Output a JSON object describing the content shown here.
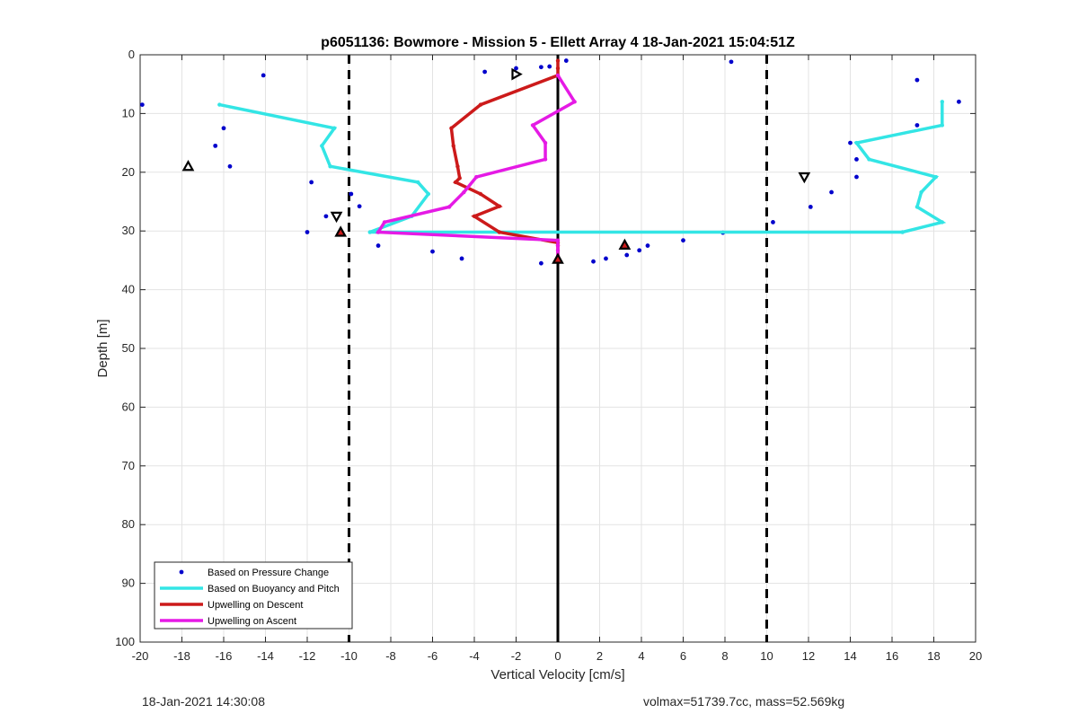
{
  "chart_data": {
    "type": "scatter",
    "title": "p6051136: Bowmore - Mission 5 - Ellett Array 4 18-Jan-2021 15:04:51Z",
    "xlabel": "Vertical Velocity [cm/s]",
    "ylabel": "Depth [m]",
    "xlim": [
      -20,
      20
    ],
    "ylim": [
      0,
      100
    ],
    "y_reversed": true,
    "xticks": [
      -20,
      -18,
      -16,
      -14,
      -12,
      -10,
      -8,
      -6,
      -4,
      -2,
      0,
      2,
      4,
      6,
      8,
      10,
      12,
      14,
      16,
      18,
      20
    ],
    "yticks": [
      0,
      10,
      20,
      30,
      40,
      50,
      60,
      70,
      80,
      90,
      100
    ],
    "grid": true,
    "legend_position": "bottom-left",
    "reference_lines": [
      {
        "x": -10,
        "style": "dashed",
        "color": "#000000"
      },
      {
        "x": 10,
        "style": "dashed",
        "color": "#000000"
      },
      {
        "x": 0,
        "style": "solid",
        "color": "#000000"
      }
    ],
    "series": [
      {
        "name": "Based on Pressure Change",
        "kind": "points",
        "color": "#0000cc",
        "points": [
          [
            -19.9,
            8.5
          ],
          [
            -14.1,
            3.5
          ],
          [
            -16.0,
            12.5
          ],
          [
            -16.4,
            15.5
          ],
          [
            -15.7,
            19.0
          ],
          [
            -11.8,
            21.7
          ],
          [
            -11.1,
            27.5
          ],
          [
            -12.0,
            30.2
          ],
          [
            -9.9,
            23.7
          ],
          [
            -9.5,
            25.8
          ],
          [
            -8.6,
            32.5
          ],
          [
            -6.0,
            33.5
          ],
          [
            -4.6,
            34.7
          ],
          [
            -3.5,
            2.9
          ],
          [
            -2.0,
            2.3
          ],
          [
            -0.8,
            2.1
          ],
          [
            -0.4,
            2.0
          ],
          [
            0.4,
            1.0
          ],
          [
            -0.8,
            35.5
          ],
          [
            1.7,
            35.2
          ],
          [
            2.3,
            34.7
          ],
          [
            3.3,
            34.1
          ],
          [
            3.9,
            33.3
          ],
          [
            4.3,
            32.5
          ],
          [
            6.0,
            31.6
          ],
          [
            7.9,
            30.3
          ],
          [
            8.3,
            1.2
          ],
          [
            10.3,
            28.5
          ],
          [
            12.1,
            25.9
          ],
          [
            13.1,
            23.4
          ],
          [
            14.0,
            15.0
          ],
          [
            14.3,
            17.8
          ],
          [
            14.3,
            20.8
          ],
          [
            17.2,
            4.3
          ],
          [
            17.2,
            12.0
          ],
          [
            19.2,
            8.0
          ]
        ]
      },
      {
        "name": "Based on Buoyancy and Pitch",
        "kind": "line",
        "color": "#33e5e5",
        "points": [
          [
            -16.2,
            8.5
          ],
          [
            -10.7,
            12.5
          ],
          [
            -11.3,
            15.5
          ],
          [
            -10.9,
            19.0
          ],
          [
            -6.7,
            21.7
          ],
          [
            -6.2,
            23.7
          ],
          [
            -7.0,
            27.5
          ],
          [
            -9.0,
            30.2
          ],
          [
            16.5,
            30.2
          ],
          [
            18.4,
            28.5
          ],
          [
            17.2,
            25.9
          ],
          [
            17.4,
            23.4
          ],
          [
            18.1,
            20.8
          ],
          [
            14.9,
            17.8
          ],
          [
            14.3,
            15.0
          ],
          [
            18.4,
            12.0
          ],
          [
            18.4,
            8.0
          ]
        ]
      },
      {
        "name": "Upwelling on Descent",
        "kind": "line",
        "color": "#cc1a1a",
        "points": [
          [
            0.0,
            1.0
          ],
          [
            0.0,
            2.3
          ],
          [
            0.0,
            3.5
          ],
          [
            -3.7,
            8.5
          ],
          [
            -5.1,
            12.5
          ],
          [
            -5.0,
            15.5
          ],
          [
            -4.8,
            19.0
          ],
          [
            -4.7,
            21.0
          ],
          [
            -4.9,
            21.7
          ],
          [
            -3.7,
            23.7
          ],
          [
            -2.8,
            25.8
          ],
          [
            -4.0,
            27.5
          ],
          [
            -2.8,
            30.2
          ],
          [
            0.0,
            32.0
          ],
          [
            0.0,
            32.5
          ],
          [
            0.0,
            34.7
          ]
        ]
      },
      {
        "name": "Upwelling on Ascent",
        "kind": "line",
        "color": "#e51ae5",
        "points": [
          [
            0.0,
            3.5
          ],
          [
            0.8,
            8.0
          ],
          [
            -1.2,
            12.0
          ],
          [
            -0.6,
            15.0
          ],
          [
            -0.6,
            17.8
          ],
          [
            -3.9,
            20.8
          ],
          [
            -4.5,
            23.4
          ],
          [
            -5.2,
            25.9
          ],
          [
            -8.3,
            28.5
          ],
          [
            -8.6,
            30.2
          ],
          [
            0.0,
            31.6
          ],
          [
            0.0,
            32.5
          ],
          [
            0.0,
            33.3
          ],
          [
            0.0,
            34.7
          ]
        ]
      }
    ],
    "markers": [
      {
        "shape": "triangle-up",
        "fill": "none",
        "stroke": "#000000",
        "x": -17.7,
        "y": 19.0
      },
      {
        "shape": "triangle-down",
        "fill": "none",
        "stroke": "#000000",
        "x": -10.6,
        "y": 27.5
      },
      {
        "shape": "triangle-right",
        "fill": "none",
        "stroke": "#000000",
        "x": -2.0,
        "y": 3.3
      },
      {
        "shape": "triangle-down",
        "fill": "none",
        "stroke": "#000000",
        "x": 11.8,
        "y": 20.8
      },
      {
        "shape": "triangle-up",
        "fill": "#cc1a1a",
        "stroke": "#000000",
        "x": -10.4,
        "y": 30.2
      },
      {
        "shape": "triangle-up",
        "fill": "#cc1a1a",
        "stroke": "#000000",
        "x": 3.2,
        "y": 32.4
      },
      {
        "shape": "triangle-up",
        "fill": "#cc1a1a",
        "stroke": "#000000",
        "x": 0.0,
        "y": 34.8
      }
    ]
  },
  "footer": {
    "timestamp": "18-Jan-2021 14:30:08",
    "summary": "volmax=51739.7cc, mass=52.569kg"
  }
}
